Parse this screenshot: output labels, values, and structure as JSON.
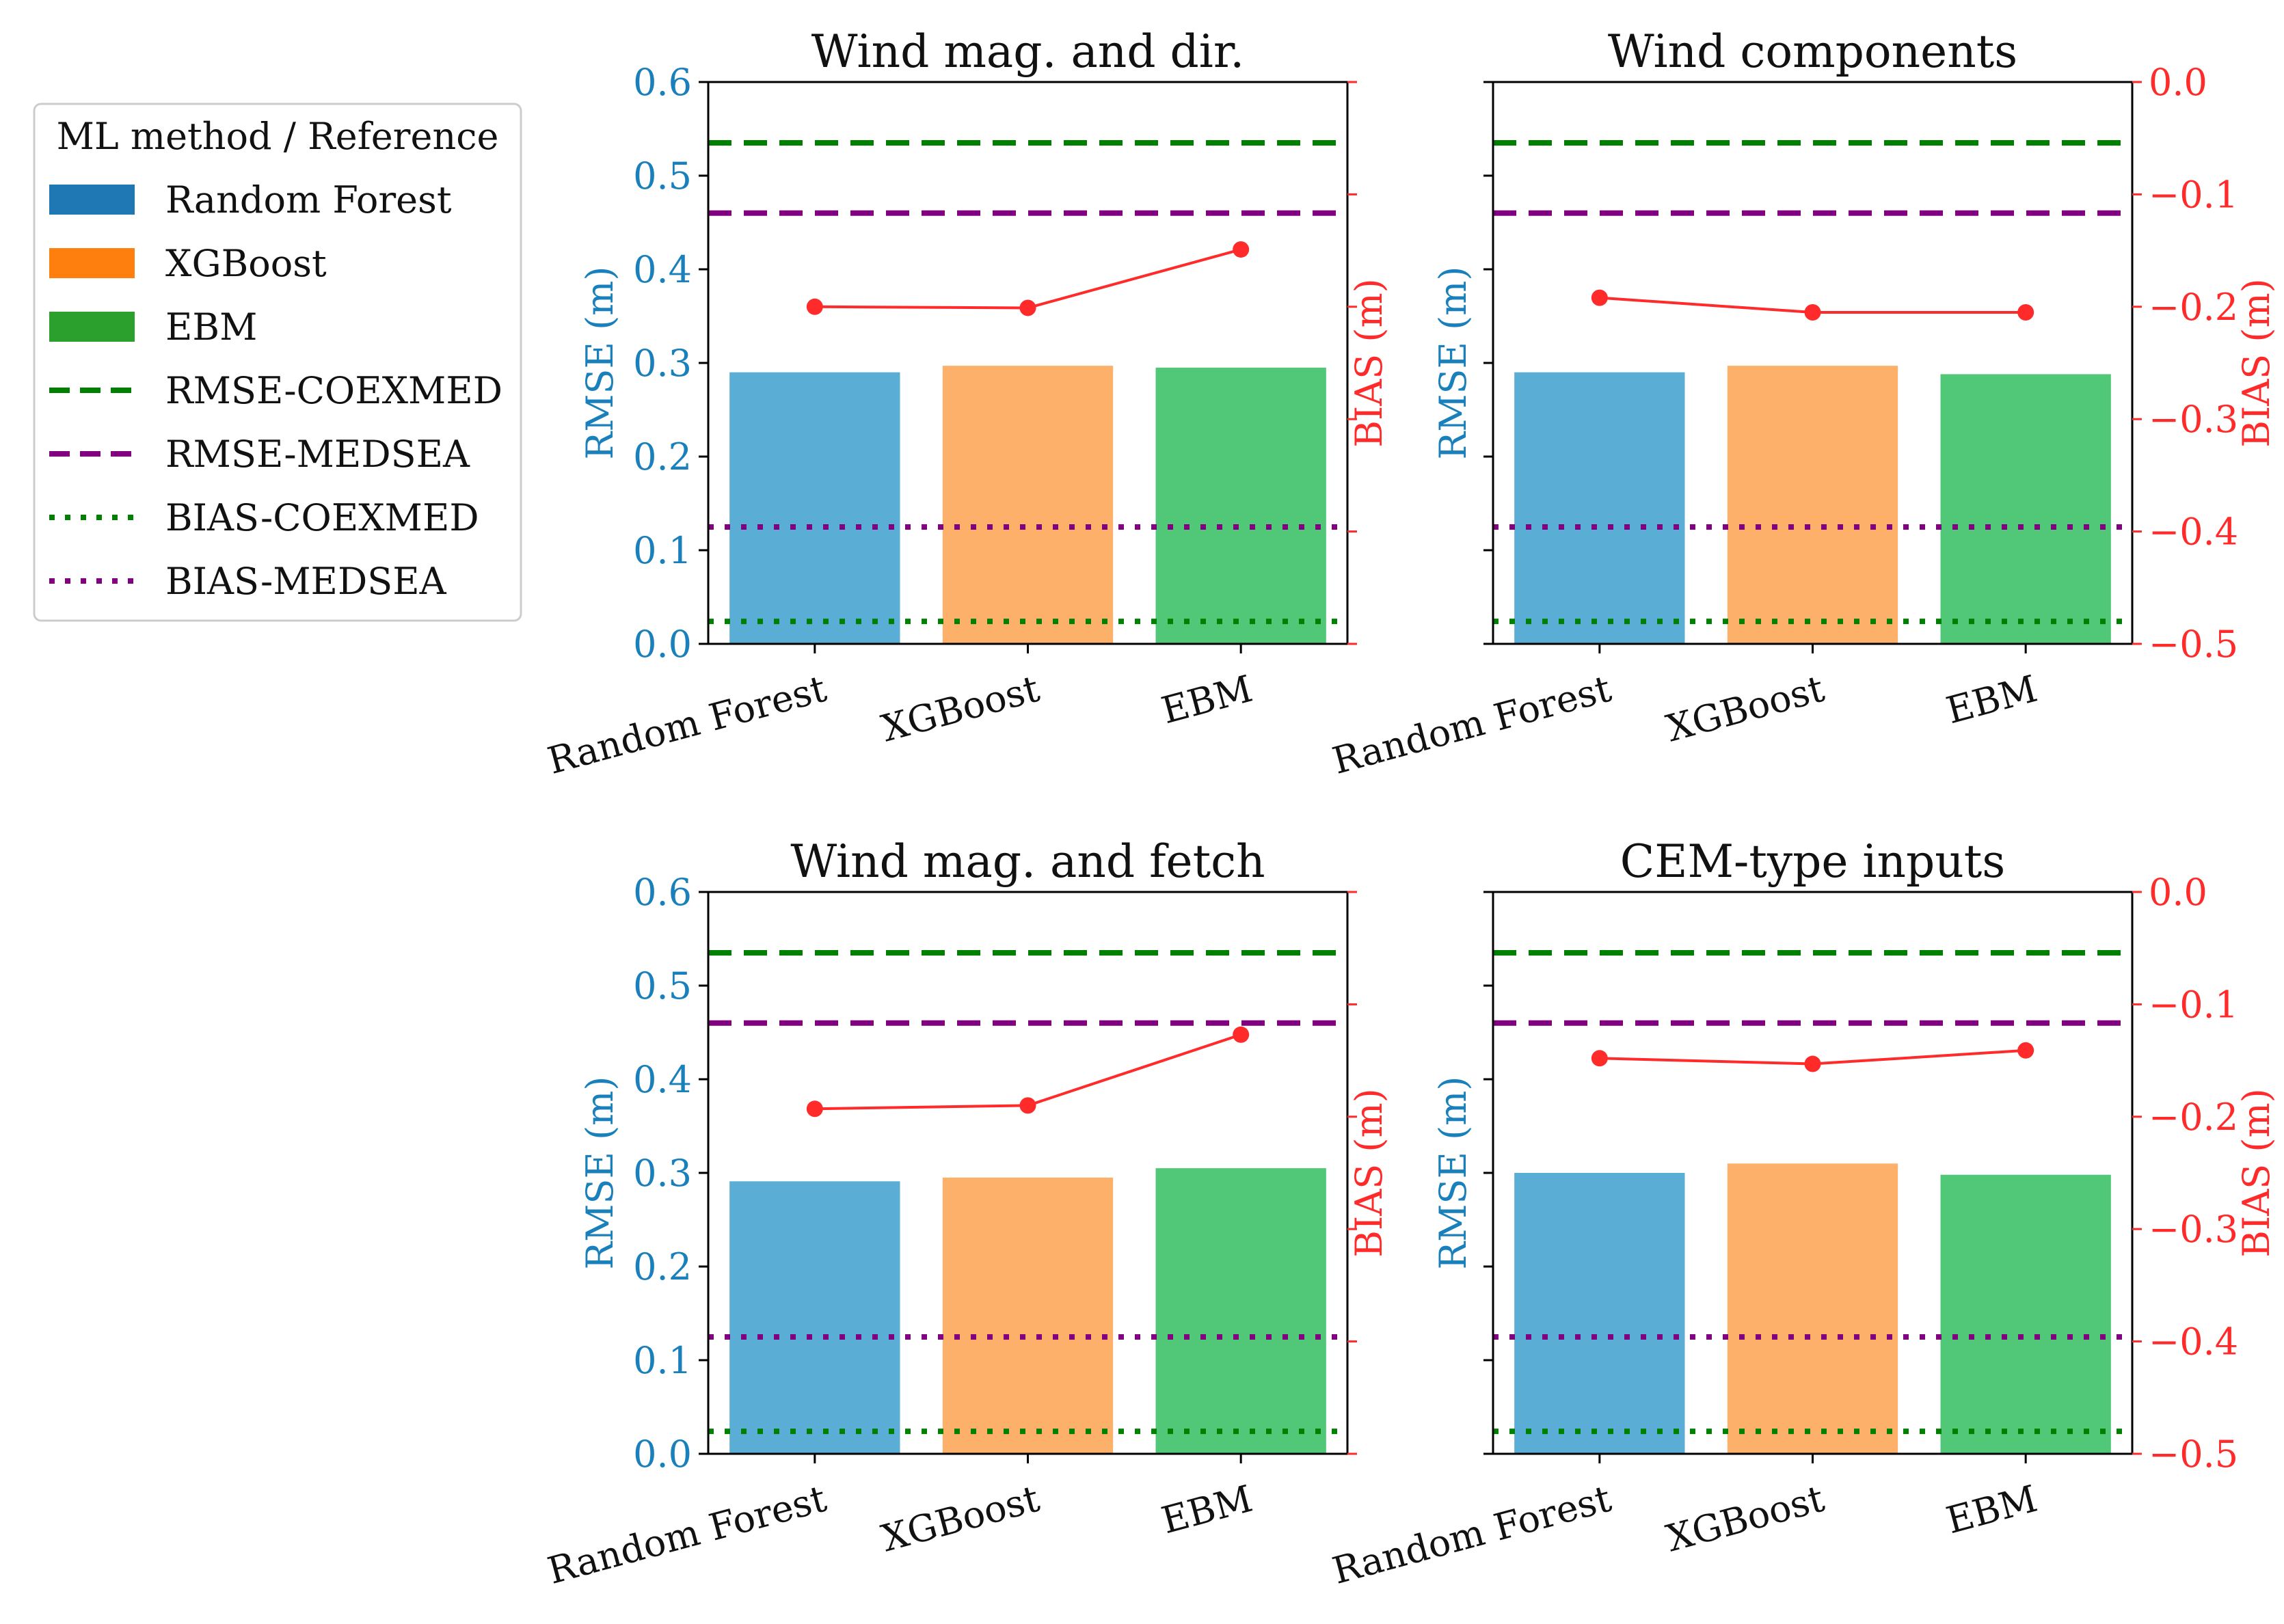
{
  "legend": {
    "title": "ML method / Reference",
    "position": "left",
    "entries": [
      {
        "label": "Random Forest",
        "kind": "patch",
        "color": "#1f77b4"
      },
      {
        "label": "XGBoost",
        "kind": "patch",
        "color": "#ff7f0e"
      },
      {
        "label": "EBM",
        "kind": "patch",
        "color": "#2ca02c"
      },
      {
        "label": "RMSE-COEXMED",
        "kind": "dashed",
        "color": "#008000"
      },
      {
        "label": "RMSE-MEDSEA",
        "kind": "dashed",
        "color": "#800080"
      },
      {
        "label": "BIAS-COEXMED",
        "kind": "dotted",
        "color": "#008000"
      },
      {
        "label": "BIAS-MEDSEA",
        "kind": "dotted",
        "color": "#800080"
      }
    ]
  },
  "colors": {
    "bars": [
      "#5aaed6",
      "#fdb06a",
      "#50c878"
    ],
    "rmse_axis": "#1a80bb",
    "bias_axis": "#ff2a2a",
    "bias_line": "#ff2a2a"
  },
  "chart_data": [
    {
      "type": "bar",
      "title": "Wind mag. and dir.",
      "categories": [
        "Random Forest",
        "XGBoost",
        "EBM"
      ],
      "values": [
        0.29,
        0.297,
        0.295
      ],
      "ylabel": "RMSE (m)",
      "ylim": [
        0,
        0.6
      ],
      "yticks": [
        "0.0",
        "0.1",
        "0.2",
        "0.3",
        "0.4",
        "0.5",
        "0.6"
      ],
      "y2label": "BIAS (m)",
      "y2lim": [
        -0.5,
        0
      ],
      "bias_values": [
        -0.2,
        -0.201,
        -0.149
      ],
      "reference_lines": {
        "RMSE-COEXMED": 0.535,
        "RMSE-MEDSEA": 0.46,
        "BIAS-COEXMED": -0.48,
        "BIAS-MEDSEA": -0.396
      },
      "grid": false
    },
    {
      "type": "bar",
      "title": "Wind components",
      "categories": [
        "Random Forest",
        "XGBoost",
        "EBM"
      ],
      "values": [
        0.29,
        0.297,
        0.288
      ],
      "ylabel": "RMSE (m)",
      "ylim": [
        0,
        0.6
      ],
      "y2label": "BIAS (m)",
      "y2lim": [
        -0.5,
        0
      ],
      "y2ticks": [
        "0.0",
        "−0.1",
        "−0.2",
        "−0.3",
        "−0.4",
        "−0.5"
      ],
      "bias_values": [
        -0.192,
        -0.205,
        -0.205
      ],
      "reference_lines": {
        "RMSE-COEXMED": 0.535,
        "RMSE-MEDSEA": 0.46,
        "BIAS-COEXMED": -0.48,
        "BIAS-MEDSEA": -0.396
      },
      "grid": false
    },
    {
      "type": "bar",
      "title": "Wind mag. and fetch",
      "categories": [
        "Random Forest",
        "XGBoost",
        "EBM"
      ],
      "values": [
        0.291,
        0.295,
        0.305
      ],
      "ylabel": "RMSE (m)",
      "ylim": [
        0,
        0.6
      ],
      "yticks": [
        "0.0",
        "0.1",
        "0.2",
        "0.3",
        "0.4",
        "0.5",
        "0.6"
      ],
      "y2label": "BIAS (m)",
      "y2lim": [
        -0.5,
        0
      ],
      "bias_values": [
        -0.193,
        -0.19,
        -0.127
      ],
      "reference_lines": {
        "RMSE-COEXMED": 0.535,
        "RMSE-MEDSEA": 0.46,
        "BIAS-COEXMED": -0.48,
        "BIAS-MEDSEA": -0.396
      },
      "grid": false
    },
    {
      "type": "bar",
      "title": "CEM-type inputs",
      "categories": [
        "Random Forest",
        "XGBoost",
        "EBM"
      ],
      "values": [
        0.3,
        0.31,
        0.298
      ],
      "ylabel": "RMSE (m)",
      "ylim": [
        0,
        0.6
      ],
      "y2label": "BIAS (m)",
      "y2lim": [
        -0.5,
        0
      ],
      "y2ticks": [
        "0.0",
        "−0.1",
        "−0.2",
        "−0.3",
        "−0.4",
        "−0.5"
      ],
      "bias_values": [
        -0.148,
        -0.153,
        -0.141
      ],
      "reference_lines": {
        "RMSE-COEXMED": 0.535,
        "RMSE-MEDSEA": 0.46,
        "BIAS-COEXMED": -0.48,
        "BIAS-MEDSEA": -0.396
      },
      "grid": false
    }
  ]
}
